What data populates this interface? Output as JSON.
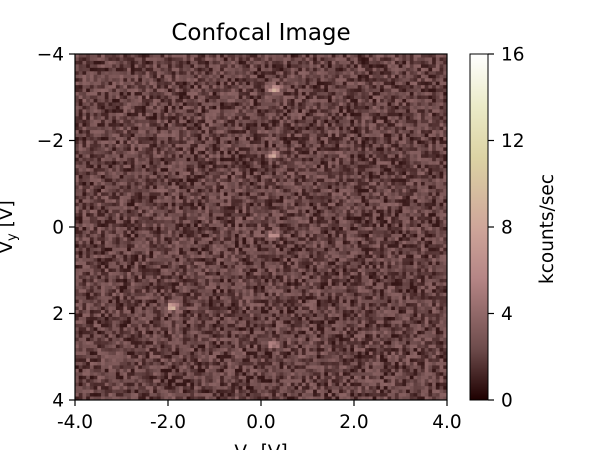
{
  "chart_data": {
    "type": "heatmap",
    "title": "Confocal Image",
    "xlabel": "V",
    "xlabel_sub": "x",
    "xlabel_unit": "[V]",
    "ylabel": "V",
    "ylabel_sub": "y",
    "ylabel_unit": "[V]",
    "xlim": [
      -4.0,
      4.0
    ],
    "ylim": [
      4,
      -4
    ],
    "y_inverted": true,
    "x_ticks": [
      -4.0,
      -2.0,
      0.0,
      2.0,
      4.0
    ],
    "x_tick_labels": [
      "-4.0",
      "-2.0",
      "0.0",
      "2.0",
      "4.0"
    ],
    "y_ticks": [
      -4,
      -2,
      0,
      2,
      4
    ],
    "y_tick_labels": [
      "−4",
      "−2",
      "0",
      "2",
      "4"
    ],
    "grid": false,
    "grid_size": [
      100,
      100
    ],
    "background_level_kcps": 2.2,
    "background_noise_kcps": 1.6,
    "bright_spots": [
      {
        "x": 0.3,
        "y": -3.2,
        "peak": 9.5
      },
      {
        "x": 0.25,
        "y": -1.65,
        "peak": 8.0
      },
      {
        "x": 0.25,
        "y": 0.2,
        "peak": 7.5
      },
      {
        "x": -1.9,
        "y": 1.85,
        "peak": 9.0
      },
      {
        "x": 0.25,
        "y": 2.7,
        "peak": 7.0
      }
    ],
    "colorbar": {
      "label": "kcounts/sec",
      "range": [
        0,
        16
      ],
      "ticks": [
        0,
        4,
        8,
        12,
        16
      ],
      "tick_labels": [
        "0",
        "4",
        "8",
        "12",
        "16"
      ],
      "colormap": "pink",
      "colormap_stops": [
        {
          "v": 0.0,
          "color": "#1e0000"
        },
        {
          "v": 0.15,
          "color": "#6e4c4c"
        },
        {
          "v": 0.35,
          "color": "#b58585"
        },
        {
          "v": 0.5,
          "color": "#cfa69a"
        },
        {
          "v": 0.7,
          "color": "#dcd3a4"
        },
        {
          "v": 0.85,
          "color": "#ebebc8"
        },
        {
          "v": 1.0,
          "color": "#ffffff"
        }
      ]
    }
  }
}
